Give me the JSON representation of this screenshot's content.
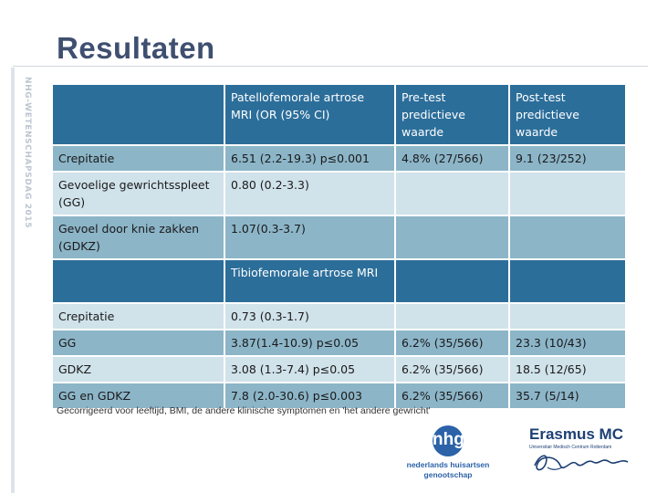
{
  "slide": {
    "title": "Resultaten",
    "side_label": "NHG-WETENSCHAPSDAG 2015",
    "footnote": "Gecorrigeerd voor leeftijd, BMI, de andere klinische symptomen en 'het andere gewricht'"
  },
  "table": {
    "header1": [
      "",
      "Patellofemorale artrose MRI (OR (95% CI)",
      "Pre-test predictieve waarde",
      "Post-test predictieve waarde"
    ],
    "rows1": [
      [
        "Crepitatie",
        "6.51 (2.2-19.3) p≤0.001",
        "4.8% (27/566)",
        "9.1 (23/252)"
      ],
      [
        "Gevoelige gewrichtsspleet (GG)",
        "0.80 (0.2-3.3)",
        "",
        ""
      ],
      [
        "Gevoel door knie zakken (GDKZ)",
        "1.07(0.3-3.7)",
        "",
        ""
      ]
    ],
    "header2": [
      "",
      "Tibiofemorale artrose MRI",
      "",
      ""
    ],
    "rows2": [
      [
        "Crepitatie",
        "0.73 (0.3-1.7)",
        "",
        ""
      ],
      [
        "GG",
        "3.87(1.4-10.9) p≤0.05",
        "6.2% (35/566)",
        "23.3 (10/43)"
      ],
      [
        "GDKZ",
        "3.08 (1.3-7.4) p≤0.05",
        "6.2% (35/566)",
        "18.5 (12/65)"
      ],
      [
        "GG en GDKZ",
        "7.8 (2.0-30.6) p≤0.003",
        "6.2% (35/566)",
        "35.7 (5/14)"
      ]
    ]
  },
  "logos": {
    "nhg_line1": "nederlands huisartsen",
    "nhg_line2": "genootschap",
    "erasmus_name": "Erasmus MC",
    "erasmus_sub": "Universitair Medisch Centrum Rotterdam"
  },
  "colors": {
    "header": "#2c6e9a",
    "row_dark": "#8cb5c8",
    "row_light": "#d0e2ea",
    "title": "#3f4f70"
  }
}
